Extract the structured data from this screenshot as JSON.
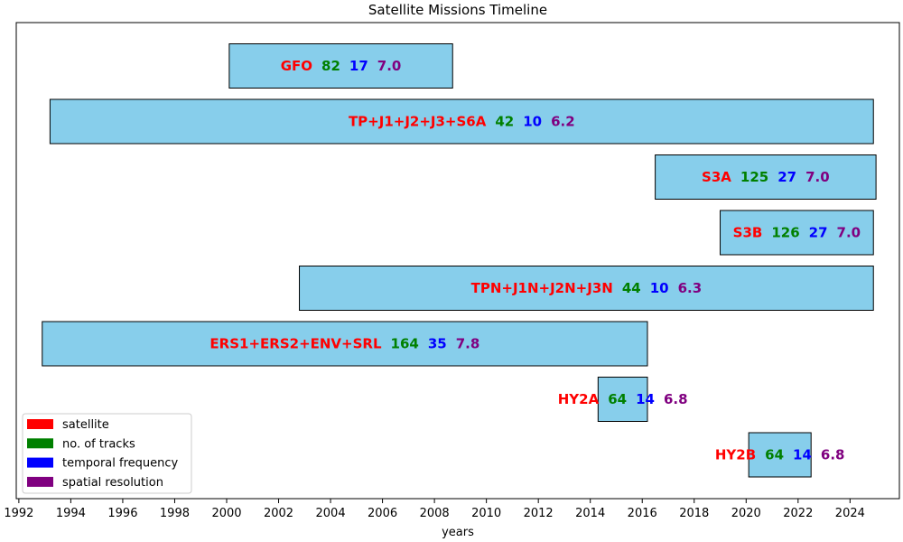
{
  "chart_data": {
    "type": "bar",
    "orientation": "horizontal",
    "title": "Satellite Missions Timeline",
    "xlabel": "years",
    "ylabel": "",
    "xlim": [
      1991.9,
      2025.9
    ],
    "xticks": [
      1992,
      1994,
      1996,
      1998,
      2000,
      2002,
      2004,
      2006,
      2008,
      2010,
      2012,
      2014,
      2016,
      2018,
      2020,
      2022,
      2024
    ],
    "grid": false,
    "bar_color": "#87ceeb",
    "bar_edge_color": "#000000",
    "missions": [
      {
        "satellite": "GFO",
        "start": 2000.1,
        "end": 2008.7,
        "tracks": "82",
        "frequency": "17",
        "resolution": "7.0"
      },
      {
        "satellite": "TP+J1+J2+J3+S6A",
        "start": 1993.2,
        "end": 2024.9,
        "tracks": "42",
        "frequency": "10",
        "resolution": "6.2"
      },
      {
        "satellite": "S3A",
        "start": 2016.5,
        "end": 2025.0,
        "tracks": "125",
        "frequency": "27",
        "resolution": "7.0"
      },
      {
        "satellite": "S3B",
        "start": 2019.0,
        "end": 2024.9,
        "tracks": "126",
        "frequency": "27",
        "resolution": "7.0"
      },
      {
        "satellite": "TPN+J1N+J2N+J3N",
        "start": 2002.8,
        "end": 2024.9,
        "tracks": "44",
        "frequency": "10",
        "resolution": "6.3"
      },
      {
        "satellite": "ERS1+ERS2+ENV+SRL",
        "start": 1992.9,
        "end": 2016.2,
        "tracks": "164",
        "frequency": "35",
        "resolution": "7.8"
      },
      {
        "satellite": "HY2A",
        "start": 2014.3,
        "end": 2016.2,
        "tracks": "64",
        "frequency": "14",
        "resolution": "6.8"
      },
      {
        "satellite": "HY2B",
        "start": 2020.1,
        "end": 2022.5,
        "tracks": "64",
        "frequency": "14",
        "resolution": "6.8"
      }
    ],
    "legend": {
      "placement": "bottom-left",
      "entries": [
        {
          "label": "satellite",
          "color": "#ff0000"
        },
        {
          "label": "no. of tracks",
          "color": "#008000"
        },
        {
          "label": "temporal frequency",
          "color": "#0000ff"
        },
        {
          "label": "spatial resolution",
          "color": "#800080"
        }
      ]
    }
  }
}
